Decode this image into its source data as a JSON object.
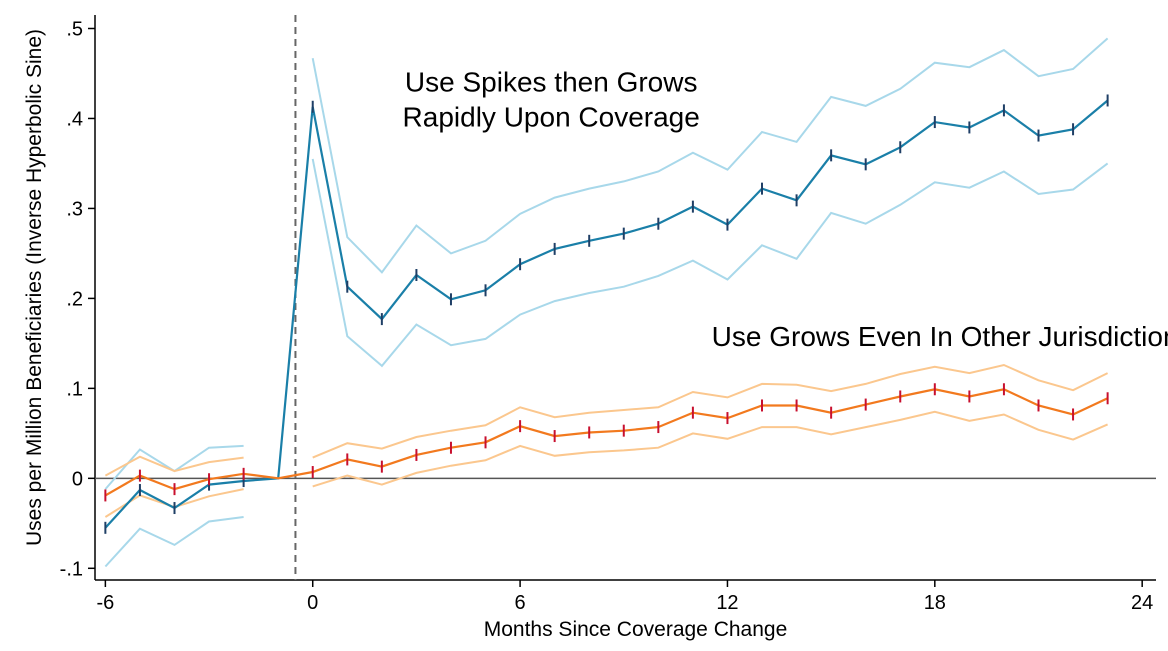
{
  "chart_data": {
    "type": "line",
    "xlabel": "Months Since Coverage Change",
    "ylabel": "Uses per Million Beneficiaries (Inverse Hyperbolic Sine)",
    "xlim": [
      -6.3,
      24.4
    ],
    "ylim": [
      -0.113,
      0.515
    ],
    "xticks": [
      -6,
      0,
      6,
      12,
      18,
      24
    ],
    "xtick_labels": [
      "-6",
      "0",
      "6",
      "12",
      "18",
      "24"
    ],
    "yticks": [
      -0.1,
      0,
      0.1,
      0.2,
      0.3,
      0.4,
      0.5
    ],
    "ytick_labels": [
      "-.1",
      "0",
      ".1",
      ".2",
      ".3",
      ".4",
      ".5"
    ],
    "vline_x": -0.5,
    "hline_y": 0,
    "annotations": [
      {
        "lines": [
          "Use Spikes then Grows",
          "Rapidly Upon Coverage"
        ],
        "x": 6.9,
        "y": 0.43
      },
      {
        "lines": [
          "Use Grows Even In Other Jurisdictions"
        ],
        "x": 18.5,
        "y": 0.147
      }
    ],
    "colors": {
      "blue": "#1a7fa8",
      "blue_ci": "#a8d8ea",
      "blue_err": "#1f3f66",
      "orange": "#f2791e",
      "orange_ci": "#fbc78e",
      "orange_err": "#c8102e",
      "zero_line": "#555555",
      "vline": "#666666"
    },
    "series": [
      {
        "key": "blue",
        "x": [
          -6,
          -5,
          -4,
          -3,
          -2,
          -1,
          0,
          1,
          2,
          3,
          4,
          5,
          6,
          7,
          8,
          9,
          10,
          11,
          12,
          13,
          14,
          15,
          16,
          17,
          18,
          19,
          20,
          21,
          22,
          23
        ],
        "values": [
          -0.055,
          -0.013,
          -0.033,
          -0.007,
          -0.003,
          0,
          0.413,
          0.213,
          0.177,
          0.226,
          0.199,
          0.209,
          0.238,
          0.255,
          0.264,
          0.272,
          0.283,
          0.302,
          0.282,
          0.322,
          0.309,
          0.359,
          0.349,
          0.368,
          0.396,
          0.39,
          0.409,
          0.381,
          0.388,
          0.42
        ],
        "upper": [
          -0.012,
          0.032,
          0.008,
          0.034,
          0.036,
          null,
          0.467,
          0.268,
          0.229,
          0.281,
          0.25,
          0.264,
          0.294,
          0.312,
          0.322,
          0.33,
          0.341,
          0.362,
          0.343,
          0.385,
          0.374,
          0.424,
          0.414,
          0.433,
          0.462,
          0.457,
          0.476,
          0.447,
          0.455,
          0.489
        ],
        "lower": [
          -0.098,
          -0.056,
          -0.074,
          -0.048,
          -0.043,
          null,
          0.355,
          0.158,
          0.125,
          0.171,
          0.148,
          0.155,
          0.182,
          0.197,
          0.206,
          0.213,
          0.225,
          0.242,
          0.221,
          0.259,
          0.244,
          0.295,
          0.283,
          0.304,
          0.329,
          0.323,
          0.341,
          0.316,
          0.321,
          0.35
        ]
      },
      {
        "key": "orange",
        "x": [
          -6,
          -5,
          -4,
          -3,
          -2,
          -1,
          0,
          1,
          2,
          3,
          4,
          5,
          6,
          7,
          8,
          9,
          10,
          11,
          12,
          13,
          14,
          15,
          16,
          17,
          18,
          19,
          20,
          21,
          22,
          23
        ],
        "values": [
          -0.019,
          0.003,
          -0.012,
          -0.001,
          0.005,
          0,
          0.007,
          0.021,
          0.013,
          0.026,
          0.034,
          0.04,
          0.058,
          0.047,
          0.051,
          0.053,
          0.057,
          0.073,
          0.067,
          0.081,
          0.081,
          0.073,
          0.082,
          0.091,
          0.099,
          0.091,
          0.099,
          0.081,
          0.071,
          0.089
        ],
        "upper": [
          0.003,
          0.024,
          0.008,
          0.018,
          0.023,
          null,
          0.023,
          0.039,
          0.033,
          0.046,
          0.053,
          0.059,
          0.079,
          0.068,
          0.073,
          0.076,
          0.079,
          0.096,
          0.09,
          0.105,
          0.104,
          0.097,
          0.105,
          0.116,
          0.124,
          0.117,
          0.126,
          0.109,
          0.098,
          0.117
        ],
        "lower": [
          -0.043,
          -0.019,
          -0.032,
          -0.02,
          -0.012,
          null,
          -0.009,
          0.003,
          -0.007,
          0.006,
          0.014,
          0.02,
          0.036,
          0.025,
          0.029,
          0.031,
          0.034,
          0.05,
          0.044,
          0.057,
          0.057,
          0.049,
          0.057,
          0.065,
          0.074,
          0.064,
          0.071,
          0.054,
          0.043,
          0.06
        ]
      }
    ]
  }
}
